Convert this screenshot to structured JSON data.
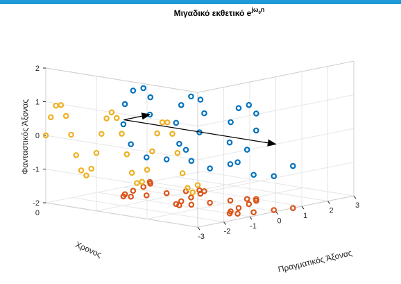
{
  "chart_data": {
    "type": "scatter",
    "title": {
      "prefix": "Μιγαδικό εκθετικό e",
      "exp_j": "j",
      "exp_omega": "ω",
      "exp_sub": "0",
      "exp_n": "n"
    },
    "xlabel": "Πραγματικός Άξονας",
    "ylabel": "Χρονος",
    "zlabel": "Φανταστικός Άξονας",
    "xlim": [
      -3,
      3
    ],
    "ylim": [
      0,
      30
    ],
    "zlim": [
      -2,
      2
    ],
    "x_ticks": [
      "-3",
      "-2",
      "-1",
      "0",
      "1",
      "2",
      "3"
    ],
    "y_ticks": [
      "0"
    ],
    "z_ticks": [
      "2",
      "1",
      "0",
      "-1",
      "-2"
    ],
    "grid": true,
    "omega0": 0.6,
    "n_range": [
      0,
      30
    ],
    "colors": {
      "main_helix": "#0072bd",
      "floor_projection": "#d95319",
      "wall_projection": "#edb120",
      "arrow": "#000000",
      "axes": "#262626",
      "grid": "#e6e6e6",
      "topbar": "#1e9bd7"
    },
    "series": [
      {
        "name": "",
        "role": "helix",
        "color": "#0072bd"
      },
      {
        "name": "",
        "role": "projection-real",
        "color": "#d95319"
      },
      {
        "name": "",
        "role": "projection-imaginary",
        "color": "#edb120"
      }
    ],
    "annotations": [
      {
        "type": "arrow",
        "from_data": [
          0,
          0,
          0
        ],
        "to_data": [
          1,
          0,
          0
        ]
      },
      {
        "type": "arrow",
        "from_data": [
          0,
          0,
          0
        ],
        "to_data": [
          0,
          30,
          0
        ]
      }
    ]
  }
}
